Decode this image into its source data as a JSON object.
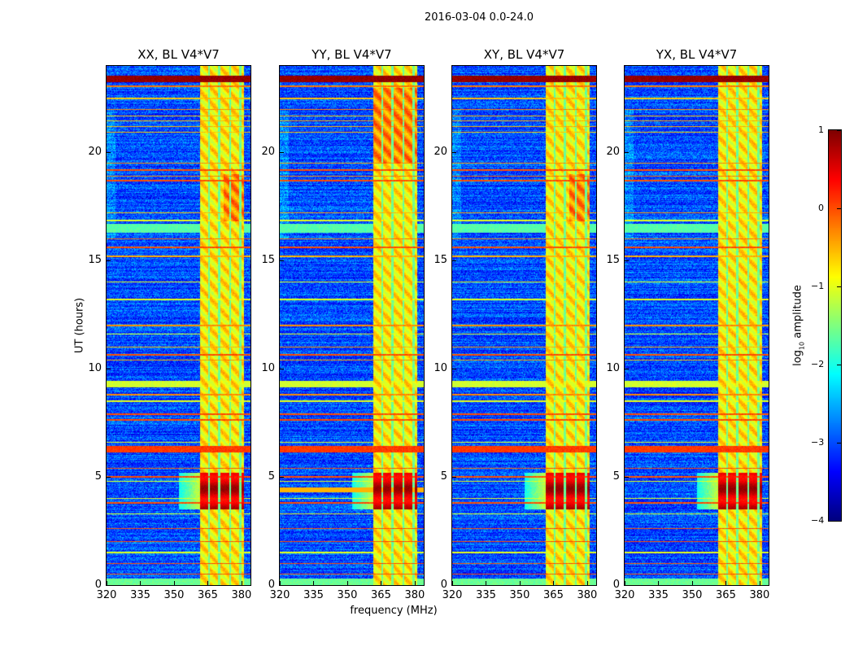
{
  "chart_data": {
    "type": "heatmap",
    "title": "2016-03-04 0.0-24.0",
    "panels": [
      {
        "title": "XX, BL V4*V7",
        "variant": "xx"
      },
      {
        "title": "YY, BL V4*V7",
        "variant": "yy"
      },
      {
        "title": "XY, BL V4*V7",
        "variant": "xy"
      },
      {
        "title": "YX, BL V4*V7",
        "variant": "yx"
      }
    ],
    "xlabel": "frequency (MHz)",
    "ylabel": "UT (hours)",
    "xlim": [
      320,
      384
    ],
    "ylim": [
      0,
      24
    ],
    "xticks": [
      "320",
      "335",
      "350",
      "365",
      "380"
    ],
    "xtick_values": [
      320,
      335,
      350,
      365,
      380
    ],
    "yticks": [
      "0",
      "5",
      "10",
      "15",
      "20"
    ],
    "ytick_values": [
      0,
      5,
      10,
      15,
      20
    ],
    "colormap": "jet",
    "colorbar": {
      "label_prefix": "log",
      "label_sub": "10",
      "label_suffix": " amplitude",
      "range": [
        -4,
        1
      ],
      "ticks": [
        "1",
        "0",
        "−1",
        "−2",
        "−3",
        "−4"
      ],
      "tick_values": [
        1,
        0,
        -1,
        -2,
        -3,
        -4
      ]
    },
    "background_level": -3,
    "signal_band_mhz": [
      361.5,
      381
    ],
    "signal_band_level": -0.8,
    "signal_gaps_mhz": [
      365.5,
      370,
      375,
      379.5
    ],
    "strong_signal_hours": [
      3.5,
      5.2
    ],
    "strong_signal_level": 0.6,
    "rfi_lines": [
      {
        "hour": 23.4,
        "width": 0.3,
        "level": 0.9
      },
      {
        "hour": 23.05,
        "width": 0.06,
        "level": -0.2
      },
      {
        "hour": 22.5,
        "width": 0.05,
        "level": -0.6
      },
      {
        "hour": 22.0,
        "width": 0.05,
        "level": -0.3
      },
      {
        "hour": 21.7,
        "width": 0.04,
        "level": -0.5
      },
      {
        "hour": 21.45,
        "width": 0.04,
        "level": -0.5
      },
      {
        "hour": 21.2,
        "width": 0.04,
        "level": -0.5
      },
      {
        "hour": 20.95,
        "width": 0.04,
        "level": -0.6
      },
      {
        "hour": 19.5,
        "width": 0.05,
        "level": -0.3
      },
      {
        "hour": 19.2,
        "width": 0.08,
        "level": 0
      },
      {
        "hour": 18.9,
        "width": 0.06,
        "level": -0.2
      },
      {
        "hour": 18.7,
        "width": 0.08,
        "level": 0
      },
      {
        "hour": 17.2,
        "width": 0.05,
        "level": -0.5
      },
      {
        "hour": 16.85,
        "width": 0.05,
        "level": -1
      },
      {
        "hour": 16.5,
        "width": 0.4,
        "level": -1.7
      },
      {
        "hour": 16.0,
        "width": 0.06,
        "level": -0.2
      },
      {
        "hour": 15.6,
        "width": 0.08,
        "level": 0
      },
      {
        "hour": 15.2,
        "width": 0.05,
        "level": -0.5
      },
      {
        "hour": 14.0,
        "width": 0.05,
        "level": -1
      },
      {
        "hour": 13.2,
        "width": 0.05,
        "level": -1
      },
      {
        "hour": 12.0,
        "width": 0.05,
        "level": -0.3
      },
      {
        "hour": 11.6,
        "width": 0.05,
        "level": -1
      },
      {
        "hour": 11.0,
        "width": 0.05,
        "level": -0.5
      },
      {
        "hour": 10.65,
        "width": 0.08,
        "level": 0
      },
      {
        "hour": 10.4,
        "width": 0.05,
        "level": -0.3
      },
      {
        "hour": 9.3,
        "width": 0.3,
        "level": -1.1
      },
      {
        "hour": 8.8,
        "width": 0.05,
        "level": -0.3
      },
      {
        "hour": 8.5,
        "width": 0.05,
        "level": -1
      },
      {
        "hour": 7.9,
        "width": 0.07,
        "level": 0
      },
      {
        "hour": 7.65,
        "width": 0.07,
        "level": 0
      },
      {
        "hour": 6.6,
        "width": 0.05,
        "level": -1
      },
      {
        "hour": 6.3,
        "width": 0.3,
        "level": 0.1
      },
      {
        "hour": 5.4,
        "width": 0.05,
        "level": 0
      },
      {
        "hour": 5.0,
        "width": 0.05,
        "level": 0
      },
      {
        "hour": 4.8,
        "width": 0.05,
        "level": -1
      },
      {
        "hour": 4.0,
        "width": 0.05,
        "level": -1
      },
      {
        "hour": 3.8,
        "width": 0.05,
        "level": 0
      },
      {
        "hour": 3.3,
        "width": 0.05,
        "level": -1
      },
      {
        "hour": 2.6,
        "width": 0.04,
        "level": 0
      },
      {
        "hour": 2.0,
        "width": 0.05,
        "level": 0
      },
      {
        "hour": 1.5,
        "width": 0.07,
        "level": -1
      },
      {
        "hour": 1.0,
        "width": 0.04,
        "level": 0
      },
      {
        "hour": 0.5,
        "width": 0.04,
        "level": 0
      },
      {
        "hour": 0.15,
        "width": 0.3,
        "level": -1.6
      }
    ]
  }
}
